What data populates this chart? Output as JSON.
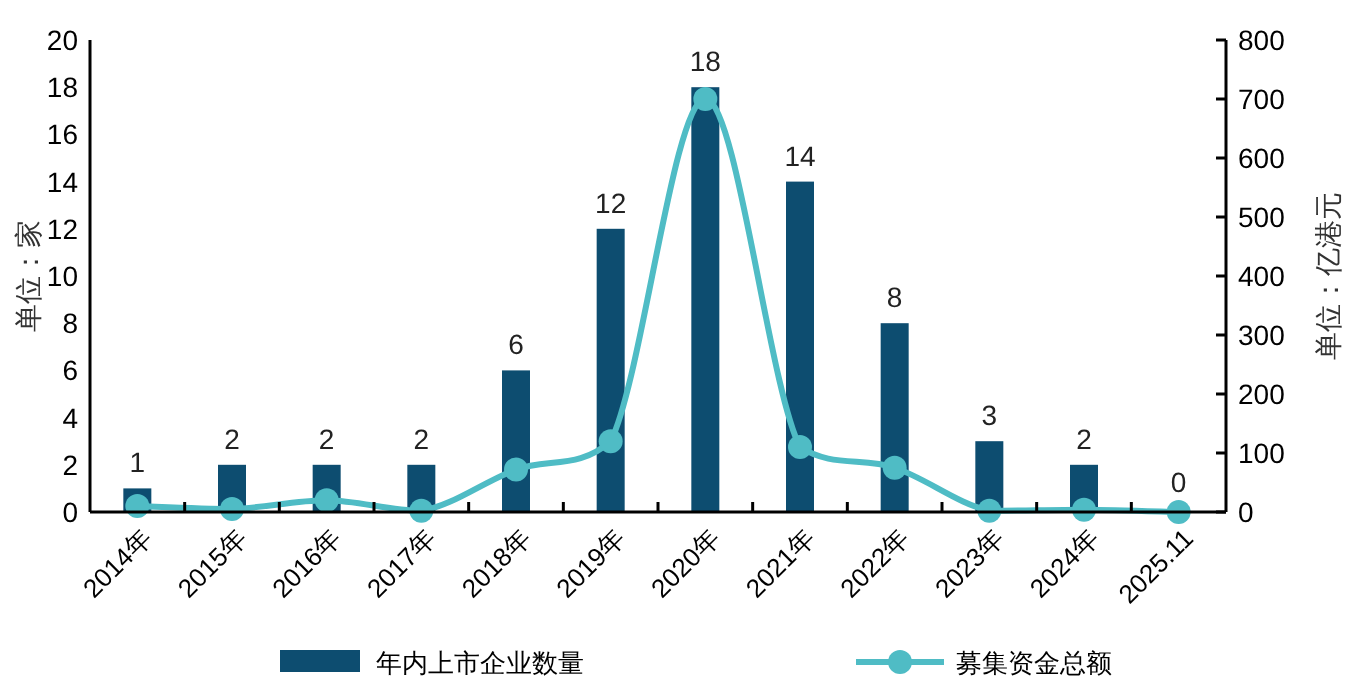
{
  "chart_data": {
    "type": "bar",
    "categories": [
      "2014年",
      "2015年",
      "2016年",
      "2017年",
      "2018年",
      "2019年",
      "2020年",
      "2021年",
      "2022年",
      "2023年",
      "2024年",
      "2025.11"
    ],
    "series": [
      {
        "name": "年内上市企业数量",
        "color": "#0d4d70",
        "values": [
          1,
          2,
          2,
          2,
          6,
          12,
          18,
          14,
          8,
          3,
          2,
          0
        ],
        "value_labels": [
          "1",
          "2",
          "2",
          "2",
          "6",
          "12",
          "18",
          "14",
          "8",
          "3",
          "2",
          "0"
        ]
      },
      {
        "name": "募集资金总额",
        "type": "line",
        "axis": "y2",
        "color": "#4fbcc5",
        "marker": "circle",
        "values": [
          10,
          5,
          20,
          2,
          72,
          120,
          700,
          110,
          75,
          2,
          4,
          0
        ]
      }
    ],
    "ylim": [
      0,
      20
    ],
    "yticks": [
      0,
      2,
      4,
      6,
      8,
      10,
      12,
      14,
      16,
      18,
      20
    ],
    "y2lim": [
      0,
      800
    ],
    "y2ticks": [
      0,
      100,
      200,
      300,
      400,
      500,
      600,
      700,
      800
    ],
    "ylabel": "单位：家",
    "y2label": "单位：亿港元",
    "legend": "bottom",
    "grid": false
  }
}
